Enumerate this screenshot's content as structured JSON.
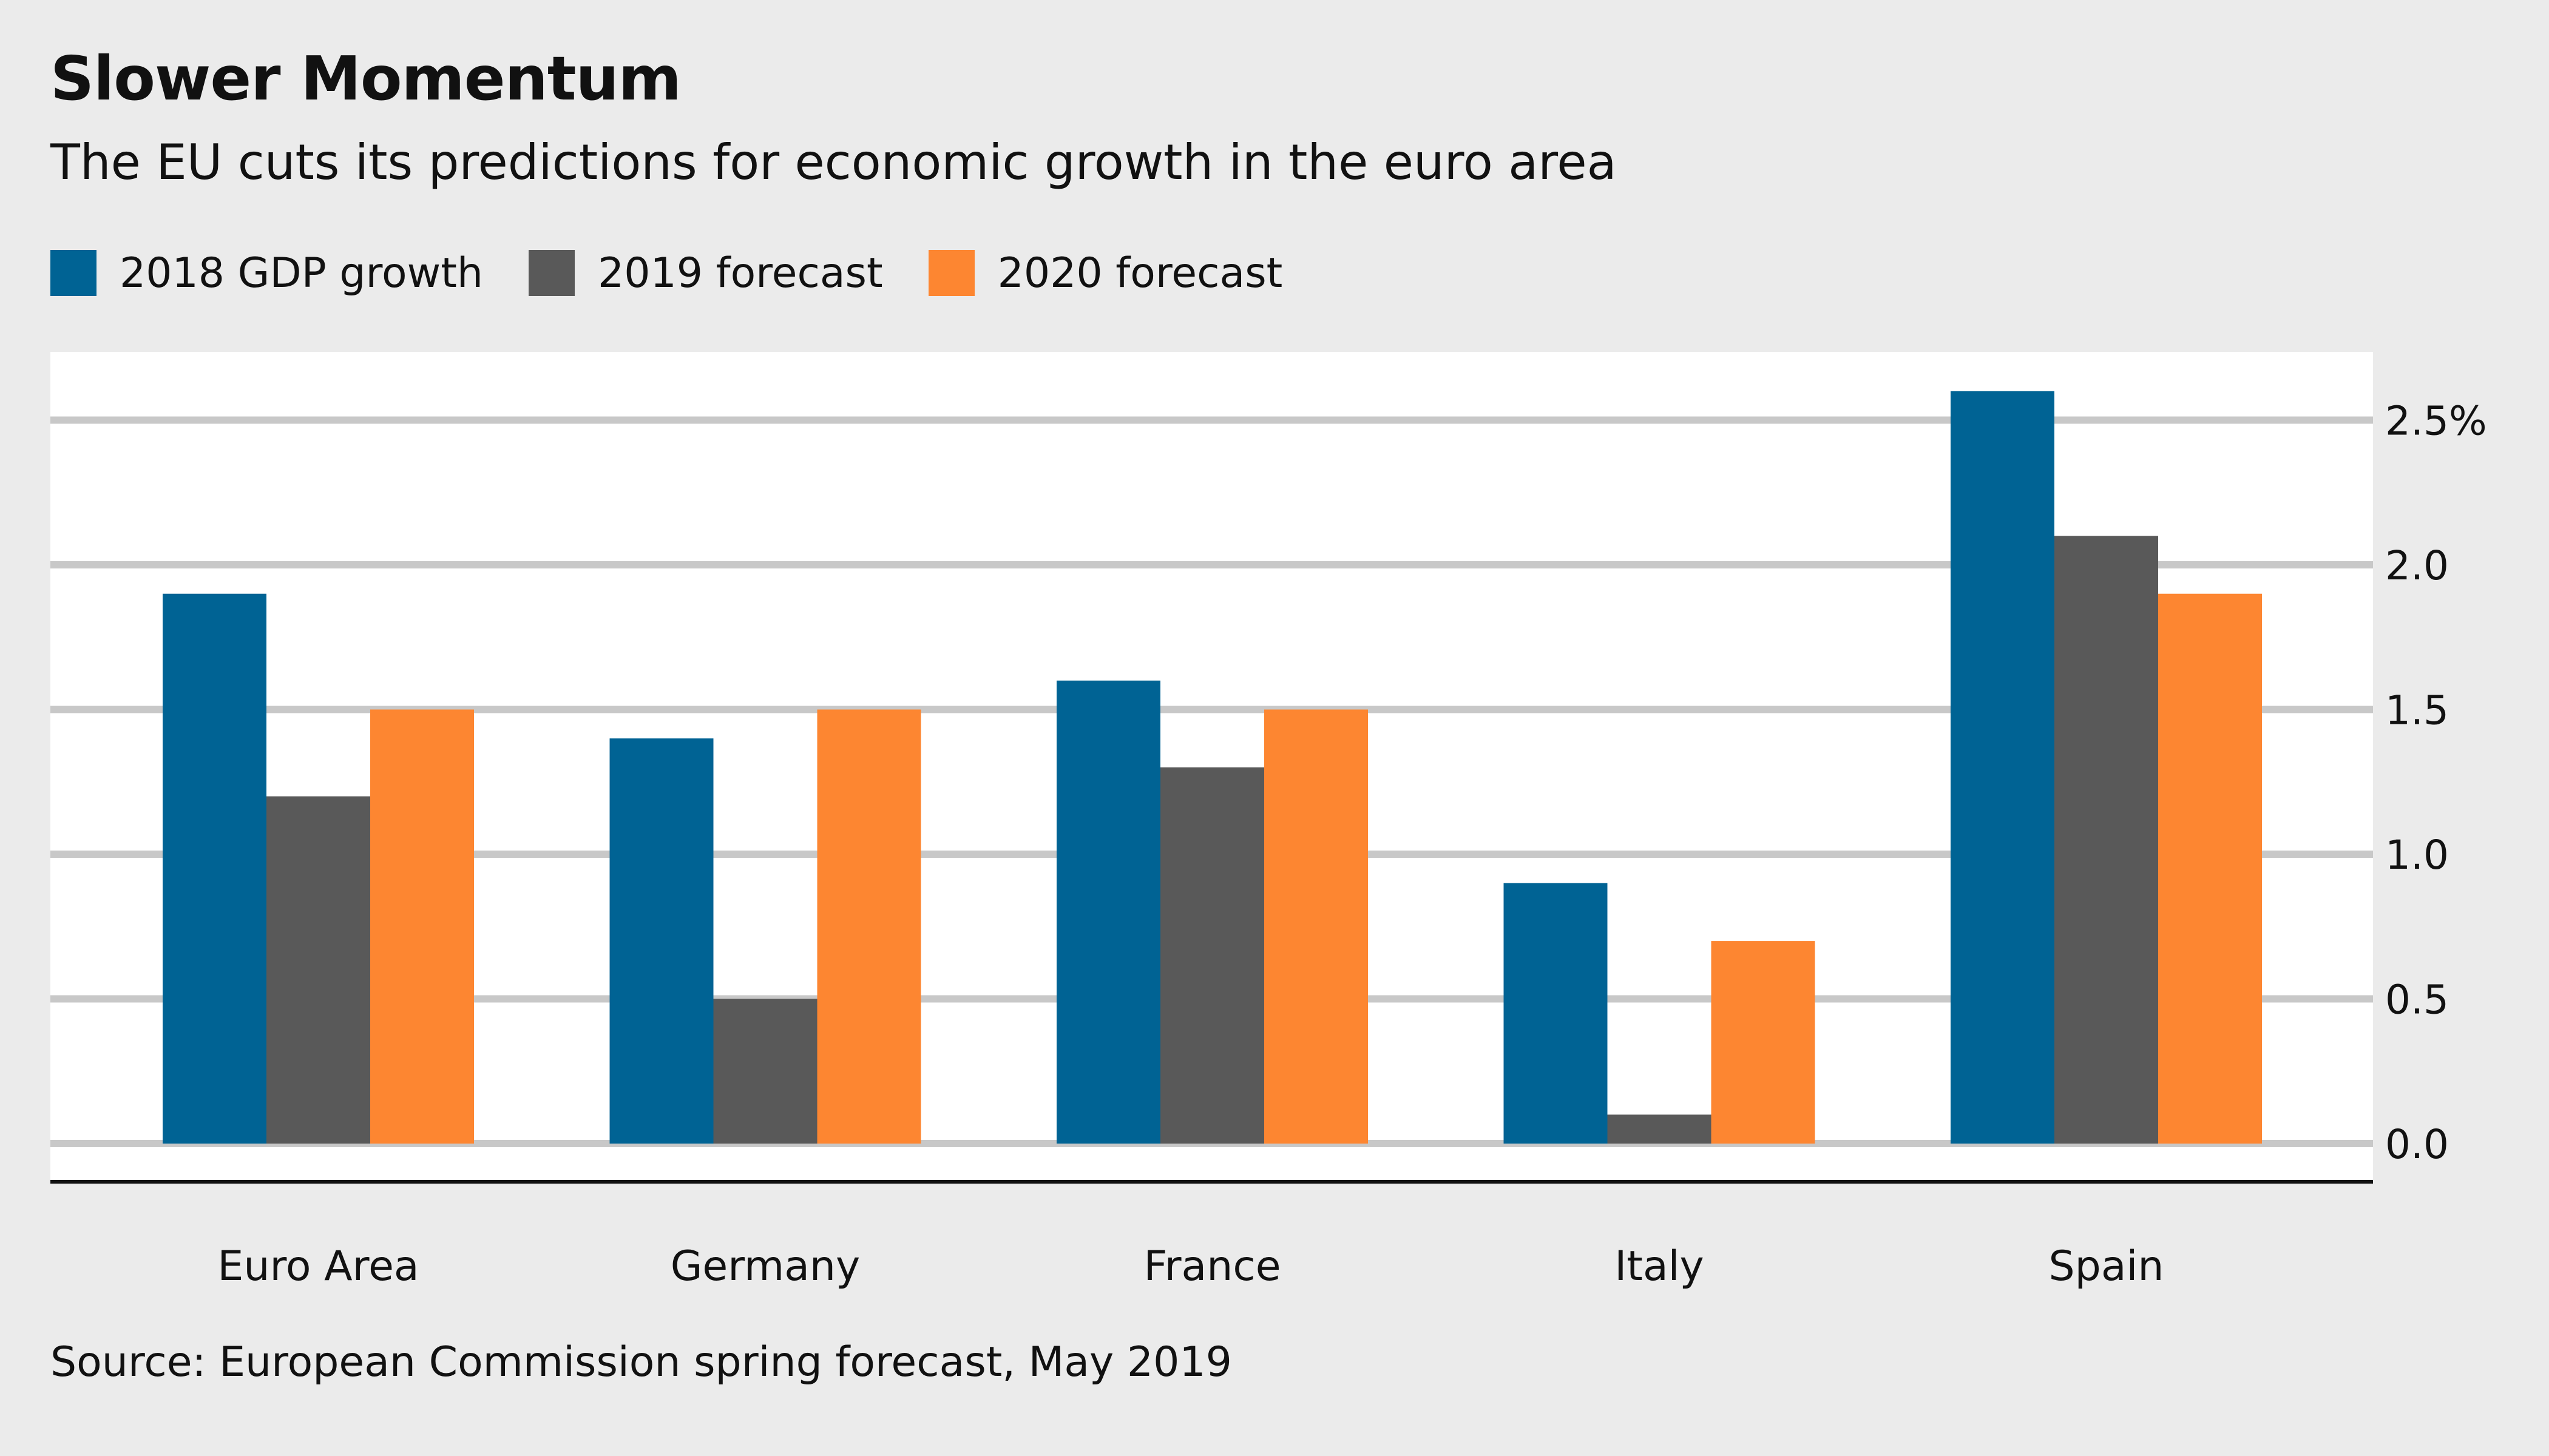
{
  "chart_data": {
    "type": "bar",
    "title": "Slower Momentum",
    "subtitle": "The EU cuts its predictions for economic growth in the euro area",
    "source": "Source: European Commission spring forecast, May 2019",
    "categories": [
      "Euro Area",
      "Germany",
      "France",
      "Italy",
      "Spain"
    ],
    "series": [
      {
        "name": "2018 GDP growth",
        "color": "#006394",
        "values": [
          1.9,
          1.4,
          1.6,
          0.9,
          2.6
        ]
      },
      {
        "name": "2019 forecast",
        "color": "#595959",
        "values": [
          1.2,
          0.5,
          1.3,
          0.1,
          2.1
        ]
      },
      {
        "name": "2020 forecast",
        "color": "#fd8631",
        "values": [
          1.5,
          1.5,
          1.5,
          0.7,
          1.9
        ]
      }
    ],
    "yaxis": {
      "position": "right",
      "ticks": [
        0.0,
        0.5,
        1.0,
        1.5,
        2.0,
        2.5
      ],
      "tick_labels": [
        "0.0",
        "0.5",
        "1.0",
        "1.5",
        "2.0",
        "2.5%"
      ],
      "ylim": [
        0,
        2.7
      ]
    },
    "grid": true,
    "legend_position": "top-left"
  }
}
